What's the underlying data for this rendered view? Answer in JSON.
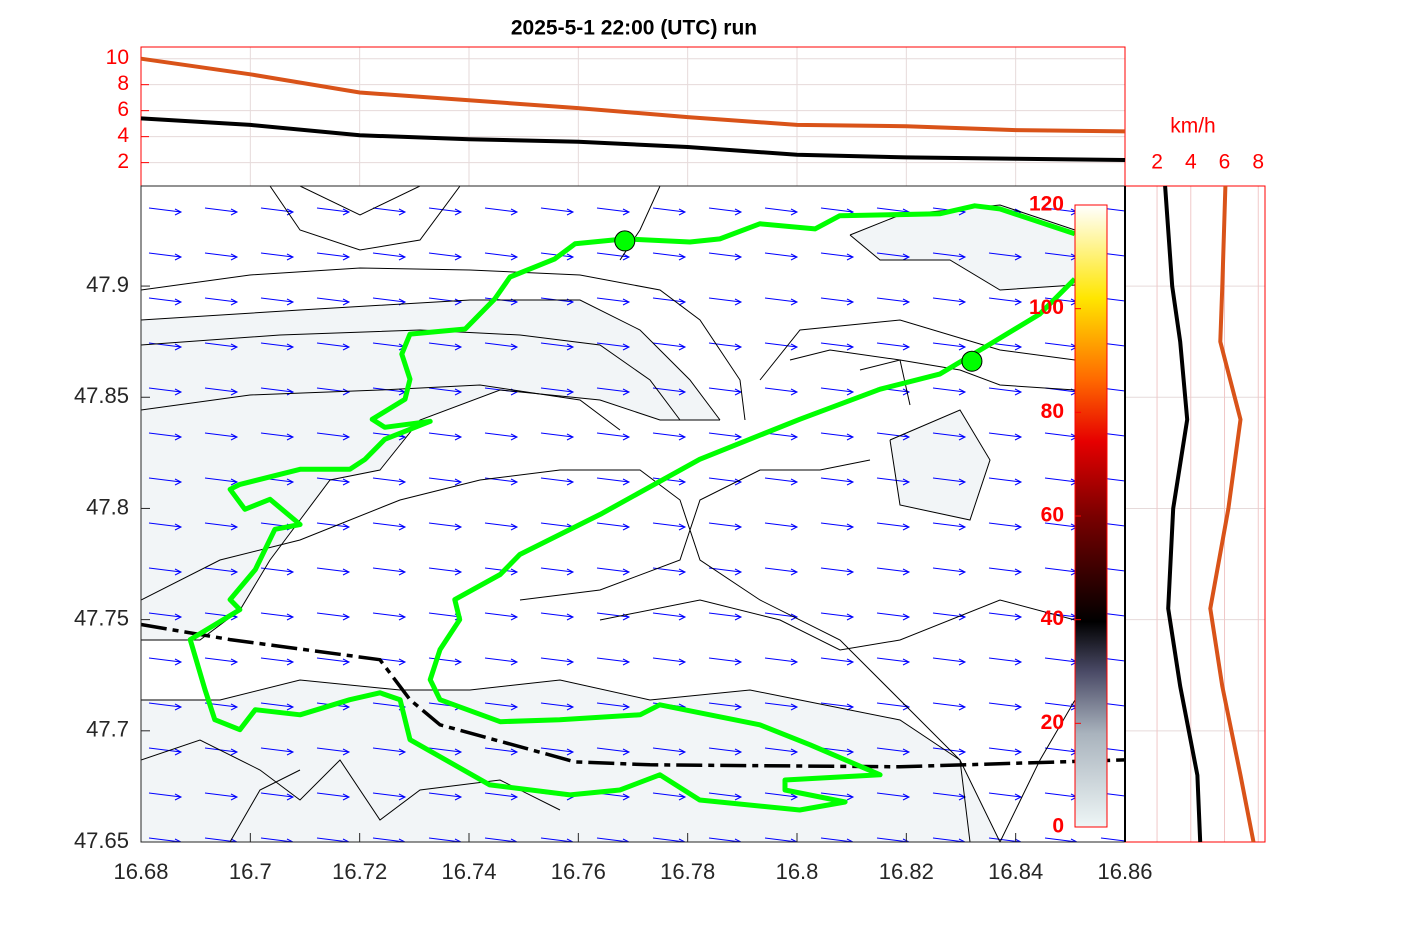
{
  "chart_data": [
    {
      "type": "line",
      "title": "2025-5-1  22:00 (UTC) run",
      "x": [
        16.68,
        16.7,
        16.72,
        16.74,
        16.76,
        16.78,
        16.8,
        16.82,
        16.84,
        16.86
      ],
      "series": [
        {
          "color": "#000000",
          "values": [
            5.4,
            4.9,
            4.1,
            3.8,
            3.6,
            3.2,
            2.6,
            2.4,
            2.3,
            2.2
          ]
        },
        {
          "color": "#d95319",
          "values": [
            10,
            8.8,
            7.4,
            6.8,
            6.2,
            5.5,
            4.9,
            4.8,
            4.5,
            4.4
          ]
        }
      ],
      "xlim": [
        16.68,
        16.86
      ],
      "ylim": [
        0.2,
        10.9
      ],
      "yticks": [
        2,
        4,
        6,
        8,
        10
      ],
      "grid": true
    },
    {
      "type": "map",
      "xlim": [
        16.68,
        16.86
      ],
      "ylim": [
        47.65,
        47.945
      ],
      "xticks": [
        16.68,
        16.7,
        16.72,
        16.74,
        16.76,
        16.78,
        16.8,
        16.82,
        16.84,
        16.86
      ],
      "yticks": [
        47.65,
        47.7,
        47.75,
        47.8,
        47.85,
        47.9
      ],
      "track": {
        "color": "#00ff00",
        "lon": [
          16.8508,
          16.8371,
          16.8325,
          16.8261,
          16.8078,
          16.8033,
          16.7932,
          16.7859,
          16.7804,
          16.7685,
          16.7594,
          16.7557,
          16.7475,
          16.7447,
          16.7393,
          16.7292,
          16.7277,
          16.7292,
          16.7283,
          16.7223,
          16.7246,
          16.7329,
          16.7246,
          16.721,
          16.7182,
          16.7091,
          16.6981,
          16.6963,
          16.699,
          16.7036,
          16.7091,
          16.7045,
          16.7009,
          16.6963,
          16.6981,
          16.689,
          16.6917,
          16.6935,
          16.6981,
          16.7009,
          16.7091,
          16.7182,
          16.7237,
          16.7274,
          16.7292,
          16.7438,
          16.7585,
          16.7676,
          16.7749,
          16.7822,
          16.8005,
          16.8088,
          16.7978,
          16.7978,
          16.8152,
          16.8024,
          16.7932,
          16.7749,
          16.7713,
          16.7566,
          16.7457,
          16.7347,
          16.7329,
          16.7347,
          16.7383,
          16.7374,
          16.7457,
          16.7493,
          16.764,
          16.7822,
          16.8005,
          16.8152,
          16.8261,
          16.8353,
          16.8444,
          16.8508
        ],
        "lat": [
          47.9235,
          47.9347,
          47.9361,
          47.9325,
          47.9316,
          47.9257,
          47.928,
          47.9212,
          47.9198,
          47.9212,
          47.919,
          47.9122,
          47.9041,
          47.8942,
          47.8807,
          47.8784,
          47.8694,
          47.8581,
          47.8491,
          47.8401,
          47.8365,
          47.8392,
          47.8311,
          47.8221,
          47.8176,
          47.8176,
          47.8108,
          47.8086,
          47.7996,
          47.8041,
          47.7928,
          47.7906,
          47.7725,
          47.759,
          47.7545,
          47.741,
          47.7185,
          47.705,
          47.7005,
          47.7095,
          47.7072,
          47.714,
          47.7171,
          47.714,
          47.696,
          47.6757,
          47.6712,
          47.6734,
          47.6802,
          47.6689,
          47.6644,
          47.668,
          47.6734,
          47.6779,
          47.6802,
          47.6937,
          47.7027,
          47.7117,
          47.7072,
          47.705,
          47.7041,
          47.714,
          47.723,
          47.7365,
          47.75,
          47.759,
          47.7703,
          47.7793,
          47.7973,
          47.8221,
          47.8401,
          47.8536,
          47.8604,
          47.8739,
          47.8874,
          47.9032
        ]
      },
      "markers": {
        "color": "#00ff00",
        "lon": [
          16.7685,
          16.832
        ],
        "lat": [
          47.9203,
          47.8662
        ]
      },
      "border": {
        "color": "#000000",
        "lon": [
          16.68,
          16.6963,
          16.7237,
          16.7292,
          16.7347,
          16.7594,
          16.7731,
          16.8188,
          16.86
        ],
        "lat": [
          47.7478,
          47.741,
          47.732,
          47.714,
          47.7027,
          47.686,
          47.6847,
          47.6838,
          47.6869
        ]
      },
      "colorbar": {
        "clim": [
          0,
          120
        ],
        "ticks": [
          0,
          20,
          40,
          60,
          80,
          100,
          120
        ]
      }
    },
    {
      "type": "profile",
      "xlabel": "km/h",
      "xlim": [
        0.1,
        8.4
      ],
      "xticks": [
        2,
        4,
        6,
        8
      ],
      "y": [
        47.945,
        47.9,
        47.875,
        47.84,
        47.8,
        47.755,
        47.72,
        47.68,
        47.65
      ],
      "series": [
        {
          "color": "#000000",
          "values": [
            2.48,
            2.9,
            3.37,
            3.79,
            2.96,
            2.66,
            3.37,
            4.39,
            4.56
          ]
        },
        {
          "color": "#d95319",
          "values": [
            6.05,
            5.87,
            5.75,
            6.95,
            6.23,
            5.16,
            5.87,
            6.95,
            7.72
          ]
        }
      ]
    }
  ]
}
